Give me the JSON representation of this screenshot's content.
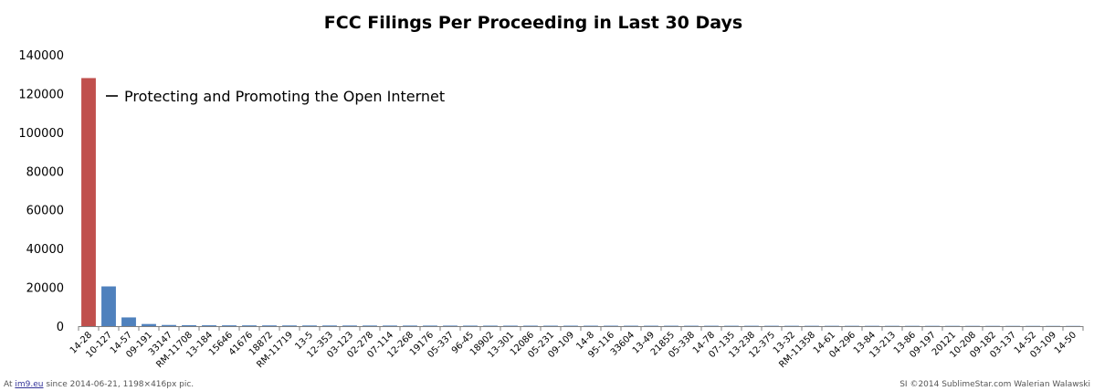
{
  "chart_data": {
    "type": "bar",
    "title": "FCC Filings Per Proceeding in Last 30 Days",
    "xlabel": "",
    "ylabel": "",
    "ylim": [
      0,
      140000
    ],
    "yticks": [
      0,
      20000,
      40000,
      60000,
      80000,
      100000,
      120000,
      140000
    ],
    "grid": false,
    "categories": [
      "14-28",
      "10-127",
      "14-57",
      "09-191",
      "33147",
      "RM-11708",
      "13-184",
      "15646",
      "41676",
      "18872",
      "RM-11719",
      "13-5",
      "12-353",
      "03-123",
      "02-278",
      "07-114",
      "12-268",
      "19176",
      "05-337",
      "96-45",
      "18902",
      "13-301",
      "12086",
      "05-231",
      "09-109",
      "14-8",
      "95-116",
      "33604",
      "13-49",
      "21855",
      "05-338",
      "14-78",
      "07-135",
      "13-238",
      "12-375",
      "13-32",
      "RM-11358",
      "14-61",
      "04-296",
      "13-84",
      "13-213",
      "13-86",
      "09-197",
      "20121",
      "10-208",
      "09-182",
      "03-137",
      "14-52",
      "03-109",
      "14-50"
    ],
    "values": [
      128000,
      20500,
      4500,
      1100,
      600,
      500,
      450,
      420,
      400,
      380,
      360,
      350,
      340,
      330,
      320,
      310,
      300,
      290,
      280,
      270,
      260,
      255,
      250,
      245,
      240,
      235,
      230,
      225,
      220,
      215,
      210,
      205,
      200,
      195,
      190,
      185,
      180,
      175,
      170,
      165,
      160,
      155,
      150,
      145,
      140,
      135,
      130,
      125,
      120,
      115
    ],
    "highlight_index": 0,
    "highlight_color": "#C0504D",
    "bar_color": "#4F81BD",
    "annotation": "Protecting and Promoting the Open Internet"
  },
  "footer": {
    "left_prefix": "At ",
    "left_link": "im9.eu",
    "left_suffix": " since 2014-06-21, 1198×416px pic.",
    "right": "SI ©2014 SublimeStar.com Walerian Walawski"
  }
}
